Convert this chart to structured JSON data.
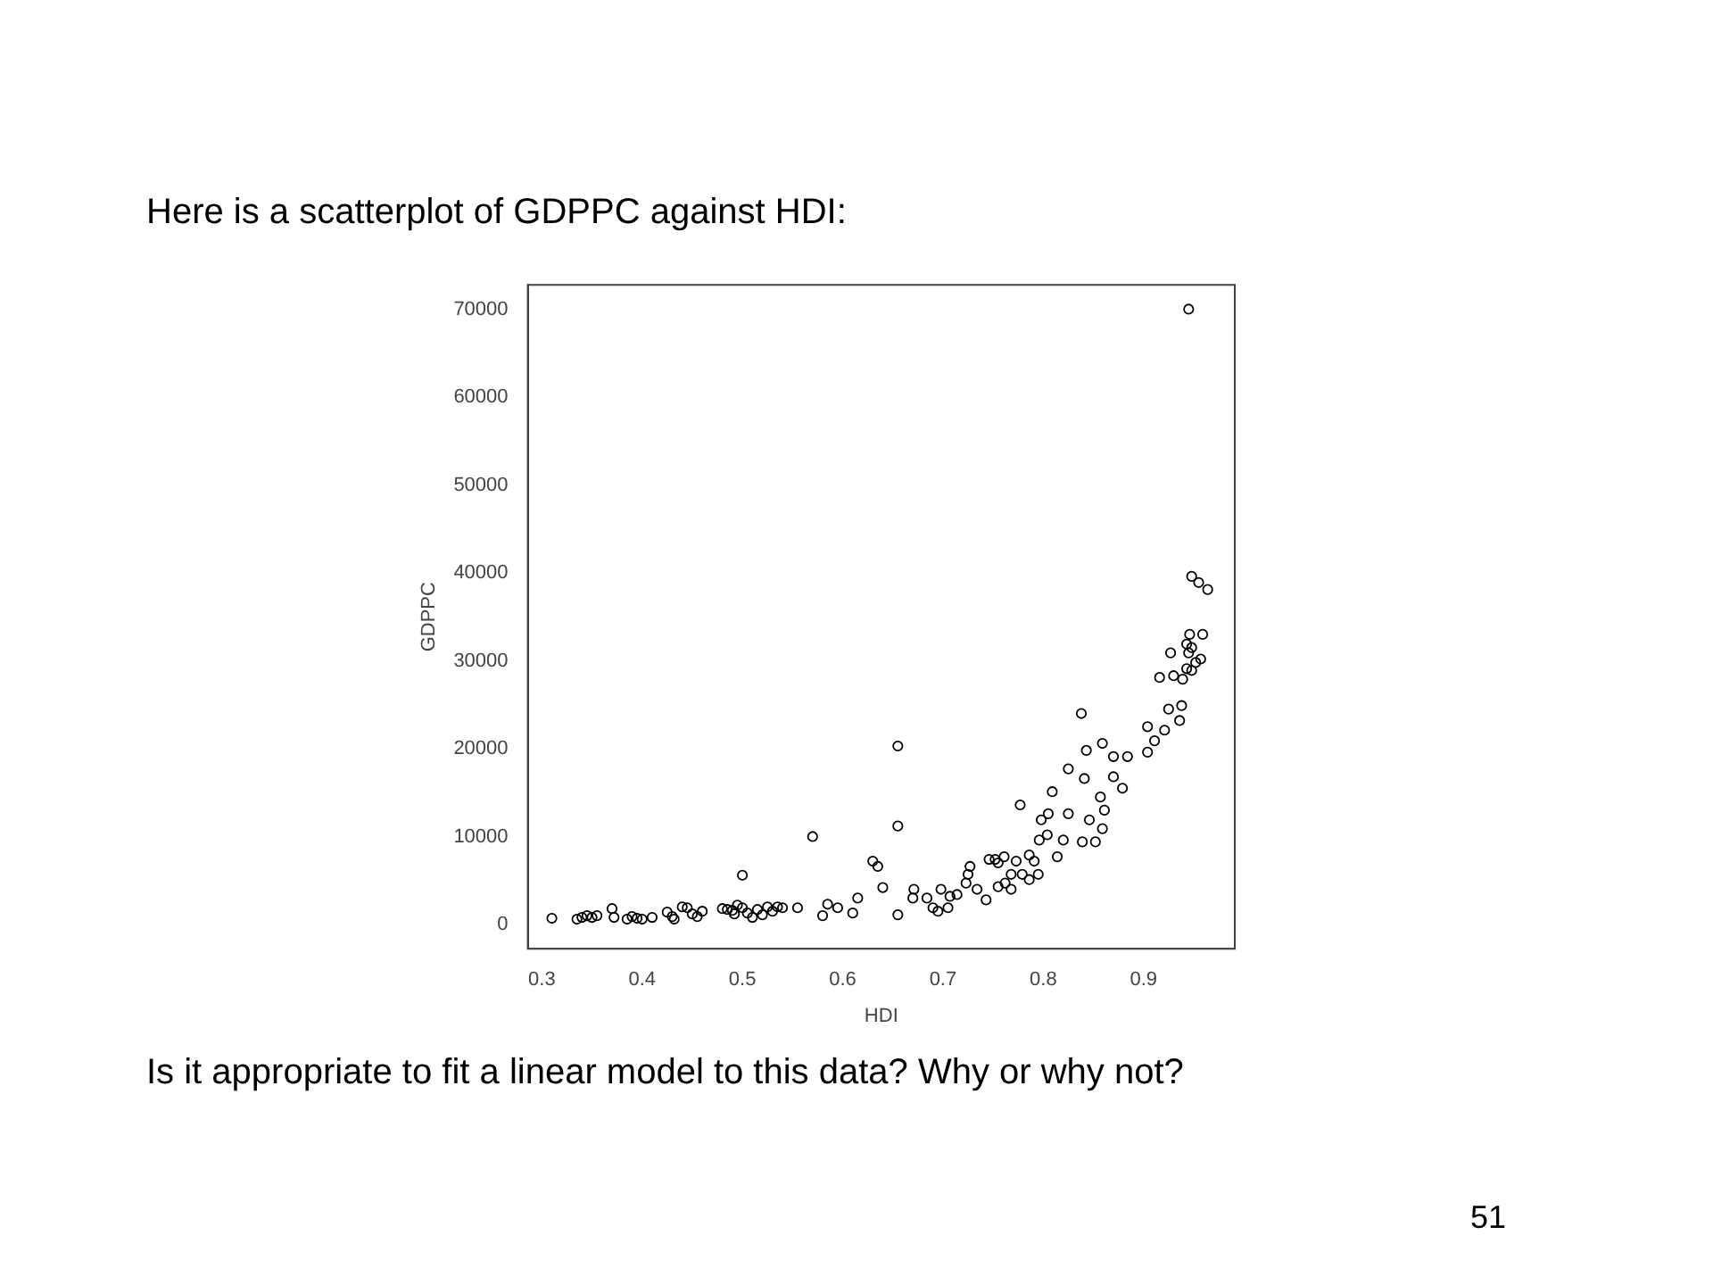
{
  "chart_data": {
    "type": "scatter",
    "title": "Here is a scatterplot of GDPPC against HDI:",
    "xlabel": "HDI",
    "ylabel": "GDPPC",
    "annotations": [
      "Is it appropriate to fit a linear model to this data?  Why or why not?",
      "51"
    ],
    "xlim": [
      0.286,
      0.991
    ],
    "ylim": [
      -2766,
      72766
    ],
    "xticks": [
      0.3,
      0.4,
      0.5,
      0.6,
      0.7,
      0.8,
      0.9
    ],
    "yticks": [
      0,
      10000,
      20000,
      30000,
      40000,
      50000,
      60000,
      70000
    ],
    "grid": false,
    "marker": "circle",
    "series": [
      {
        "color": "#000000",
        "x": [
          0.31,
          0.335,
          0.34,
          0.345,
          0.35,
          0.355,
          0.37,
          0.372,
          0.385,
          0.39,
          0.395,
          0.4,
          0.41,
          0.425,
          0.43,
          0.432,
          0.44,
          0.445,
          0.45,
          0.455,
          0.46,
          0.48,
          0.485,
          0.49,
          0.492,
          0.495,
          0.5,
          0.5,
          0.505,
          0.51,
          0.515,
          0.52,
          0.525,
          0.53,
          0.535,
          0.54,
          0.555,
          0.57,
          0.58,
          0.585,
          0.595,
          0.61,
          0.615,
          0.63,
          0.635,
          0.64,
          0.655,
          0.655,
          0.655,
          0.671,
          0.67,
          0.684,
          0.69,
          0.695,
          0.698,
          0.705,
          0.707,
          0.714,
          0.723,
          0.725,
          0.727,
          0.734,
          0.743,
          0.746,
          0.752,
          0.755,
          0.761,
          0.755,
          0.762,
          0.768,
          0.768,
          0.773,
          0.777,
          0.779,
          0.786,
          0.786,
          0.791,
          0.795,
          0.796,
          0.798,
          0.804,
          0.805,
          0.809,
          0.814,
          0.82,
          0.825,
          0.825,
          0.838,
          0.839,
          0.841,
          0.843,
          0.846,
          0.852,
          0.857,
          0.859,
          0.859,
          0.861,
          0.87,
          0.87,
          0.879,
          0.884,
          0.904,
          0.904,
          0.911,
          0.921,
          0.925,
          0.936,
          0.938,
          0.945,
          0.948,
          0.955,
          0.964,
          0.959,
          0.946,
          0.943,
          0.945,
          0.948,
          0.927,
          0.957,
          0.952,
          0.943,
          0.916,
          0.93,
          0.939,
          0.948
        ],
        "values": [
          700,
          600,
          800,
          1000,
          800,
          1000,
          1800,
          800,
          600,
          900,
          700,
          600,
          800,
          1400,
          900,
          600,
          2000,
          1900,
          1200,
          900,
          1500,
          1800,
          1700,
          1600,
          1200,
          2200,
          1900,
          5600,
          1300,
          800,
          1700,
          1100,
          2000,
          1500,
          2000,
          1900,
          1900,
          10000,
          1000,
          2300,
          1900,
          1300,
          3000,
          7200,
          6600,
          4200,
          11200,
          20300,
          1100,
          4000,
          3000,
          3000,
          1900,
          1500,
          4000,
          1900,
          3200,
          3400,
          4700,
          5700,
          6600,
          4000,
          2800,
          7400,
          7400,
          7000,
          7700,
          4300,
          4700,
          4000,
          5700,
          7200,
          13600,
          5700,
          5100,
          7900,
          7200,
          5700,
          9600,
          11900,
          10200,
          12600,
          15100,
          7700,
          9600,
          12600,
          17700,
          24000,
          9400,
          16600,
          19800,
          11900,
          9400,
          14500,
          10900,
          20600,
          13000,
          19100,
          16800,
          15500,
          19100,
          22500,
          19600,
          20900,
          22100,
          24500,
          23200,
          24900,
          70000,
          39600,
          38900,
          38100,
          33000,
          33000,
          31900,
          30900,
          31500,
          30900,
          30200,
          29800,
          29100,
          28100,
          28300,
          27900,
          28900
        ]
      }
    ]
  }
}
